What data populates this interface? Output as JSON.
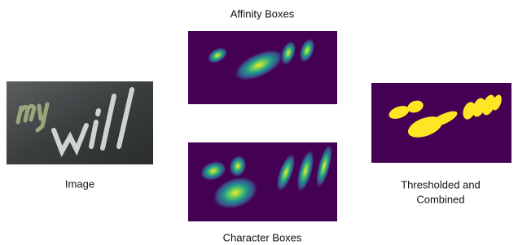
{
  "labels": {
    "affinity": "Affinity Boxes",
    "image": "Image",
    "character": "Character Boxes",
    "combined": [
      "Thresholded and",
      "Combined"
    ]
  }
}
